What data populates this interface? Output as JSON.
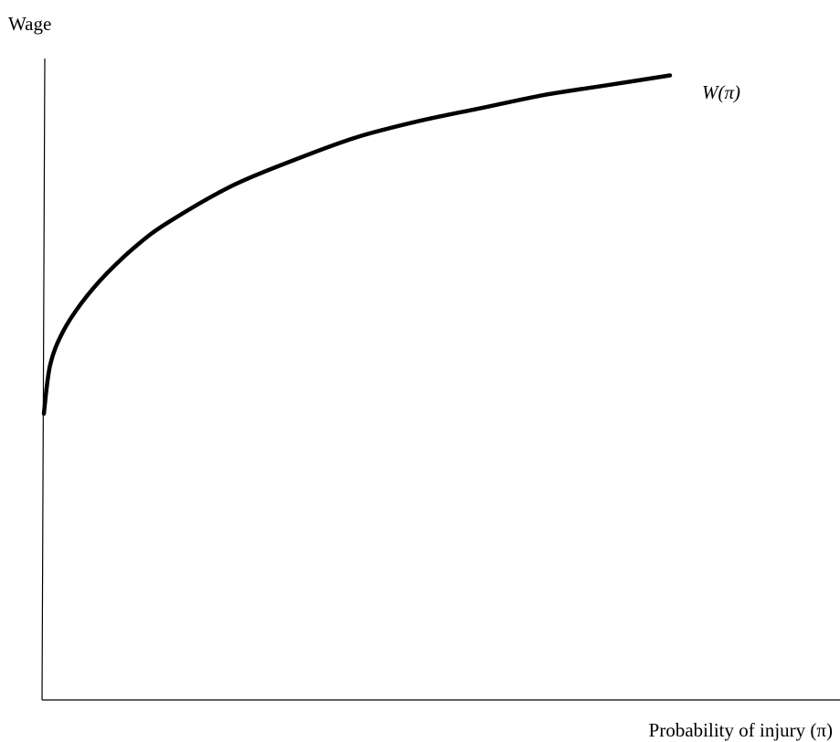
{
  "chart_data": {
    "type": "line",
    "title": "",
    "ylabel": "Wage",
    "xlabel": "Probability of injury (π)",
    "grid": false,
    "legend": "none",
    "series": [
      {
        "name": "W(π)",
        "x": [
          0,
          0.01,
          0.03,
          0.06,
          0.1,
          0.15,
          0.2,
          0.3,
          0.4,
          0.5,
          0.6,
          0.7,
          0.8,
          0.9,
          1
        ],
        "y": [
          0.44,
          0.515,
          0.565,
          0.61,
          0.655,
          0.7,
          0.735,
          0.79,
          0.83,
          0.865,
          0.89,
          0.91,
          0.93,
          0.945,
          0.96
        ],
        "color": "#000000"
      }
    ],
    "xlim": [
      0,
      1
    ],
    "ylim": [
      0,
      1
    ]
  }
}
